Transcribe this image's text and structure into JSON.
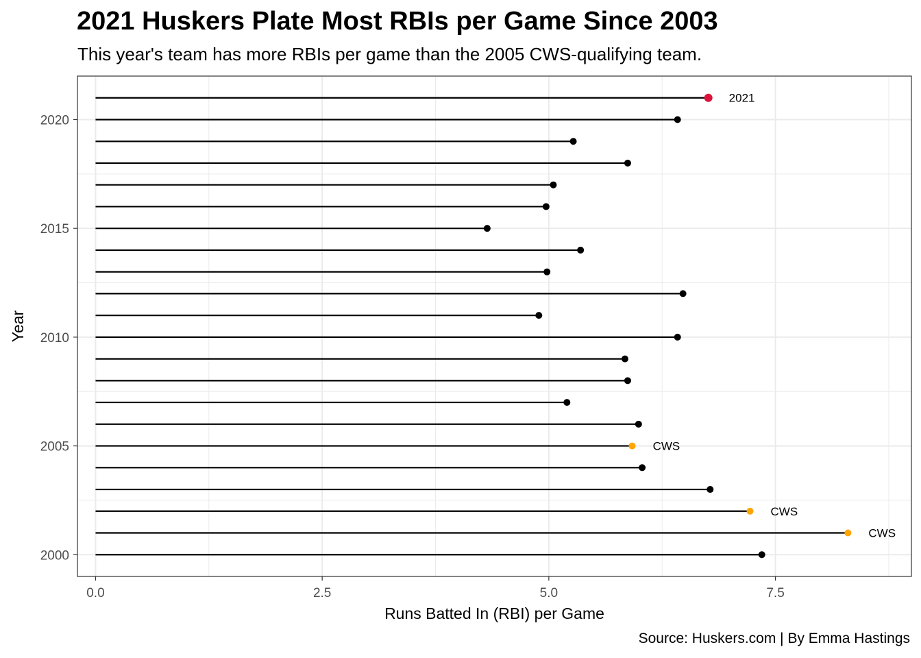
{
  "chart_data": {
    "type": "lollipop",
    "title": "2021 Huskers Plate Most RBIs per Game Since 2003",
    "subtitle": "This year's team has more RBIs per game than the 2005 CWS-qualifying team.",
    "caption": "Source: Huskers.com | By Emma Hastings",
    "xlabel": "Runs Batted In (RBI) per Game",
    "ylabel": "Year",
    "xlim": [
      -0.2,
      9.0
    ],
    "ylim": [
      1999.0,
      2022.0
    ],
    "x_ticks": [
      0.0,
      2.5,
      5.0,
      7.5
    ],
    "x_tick_labels": [
      "0.0",
      "2.5",
      "5.0",
      "7.5"
    ],
    "y_ticks": [
      2000,
      2005,
      2010,
      2015,
      2020
    ],
    "y_tick_labels": [
      "2000",
      "2005",
      "2010",
      "2015",
      "2020"
    ],
    "grid": true,
    "colors": {
      "default": "#000000",
      "highlight": "#dc143c",
      "cws": "#ffa500",
      "panel_border": "#333333",
      "grid": "#ebebeb"
    },
    "points": [
      {
        "year": 2000,
        "value": 7.35,
        "group": "default",
        "label": ""
      },
      {
        "year": 2001,
        "value": 8.3,
        "group": "cws",
        "label": "CWS"
      },
      {
        "year": 2002,
        "value": 7.22,
        "group": "cws",
        "label": "CWS"
      },
      {
        "year": 2003,
        "value": 6.78,
        "group": "default",
        "label": ""
      },
      {
        "year": 2004,
        "value": 6.03,
        "group": "default",
        "label": ""
      },
      {
        "year": 2005,
        "value": 5.92,
        "group": "cws",
        "label": "CWS"
      },
      {
        "year": 2006,
        "value": 5.99,
        "group": "default",
        "label": ""
      },
      {
        "year": 2007,
        "value": 5.2,
        "group": "default",
        "label": ""
      },
      {
        "year": 2008,
        "value": 5.87,
        "group": "default",
        "label": ""
      },
      {
        "year": 2009,
        "value": 5.84,
        "group": "default",
        "label": ""
      },
      {
        "year": 2010,
        "value": 6.42,
        "group": "default",
        "label": ""
      },
      {
        "year": 2011,
        "value": 4.89,
        "group": "default",
        "label": ""
      },
      {
        "year": 2012,
        "value": 6.48,
        "group": "default",
        "label": ""
      },
      {
        "year": 2013,
        "value": 4.98,
        "group": "default",
        "label": ""
      },
      {
        "year": 2014,
        "value": 5.35,
        "group": "default",
        "label": ""
      },
      {
        "year": 2015,
        "value": 4.32,
        "group": "default",
        "label": ""
      },
      {
        "year": 2016,
        "value": 4.97,
        "group": "default",
        "label": ""
      },
      {
        "year": 2017,
        "value": 5.05,
        "group": "default",
        "label": ""
      },
      {
        "year": 2018,
        "value": 5.87,
        "group": "default",
        "label": ""
      },
      {
        "year": 2019,
        "value": 5.27,
        "group": "default",
        "label": ""
      },
      {
        "year": 2020,
        "value": 6.42,
        "group": "default",
        "label": ""
      },
      {
        "year": 2021,
        "value": 6.76,
        "group": "highlight",
        "label": "2021"
      }
    ]
  }
}
